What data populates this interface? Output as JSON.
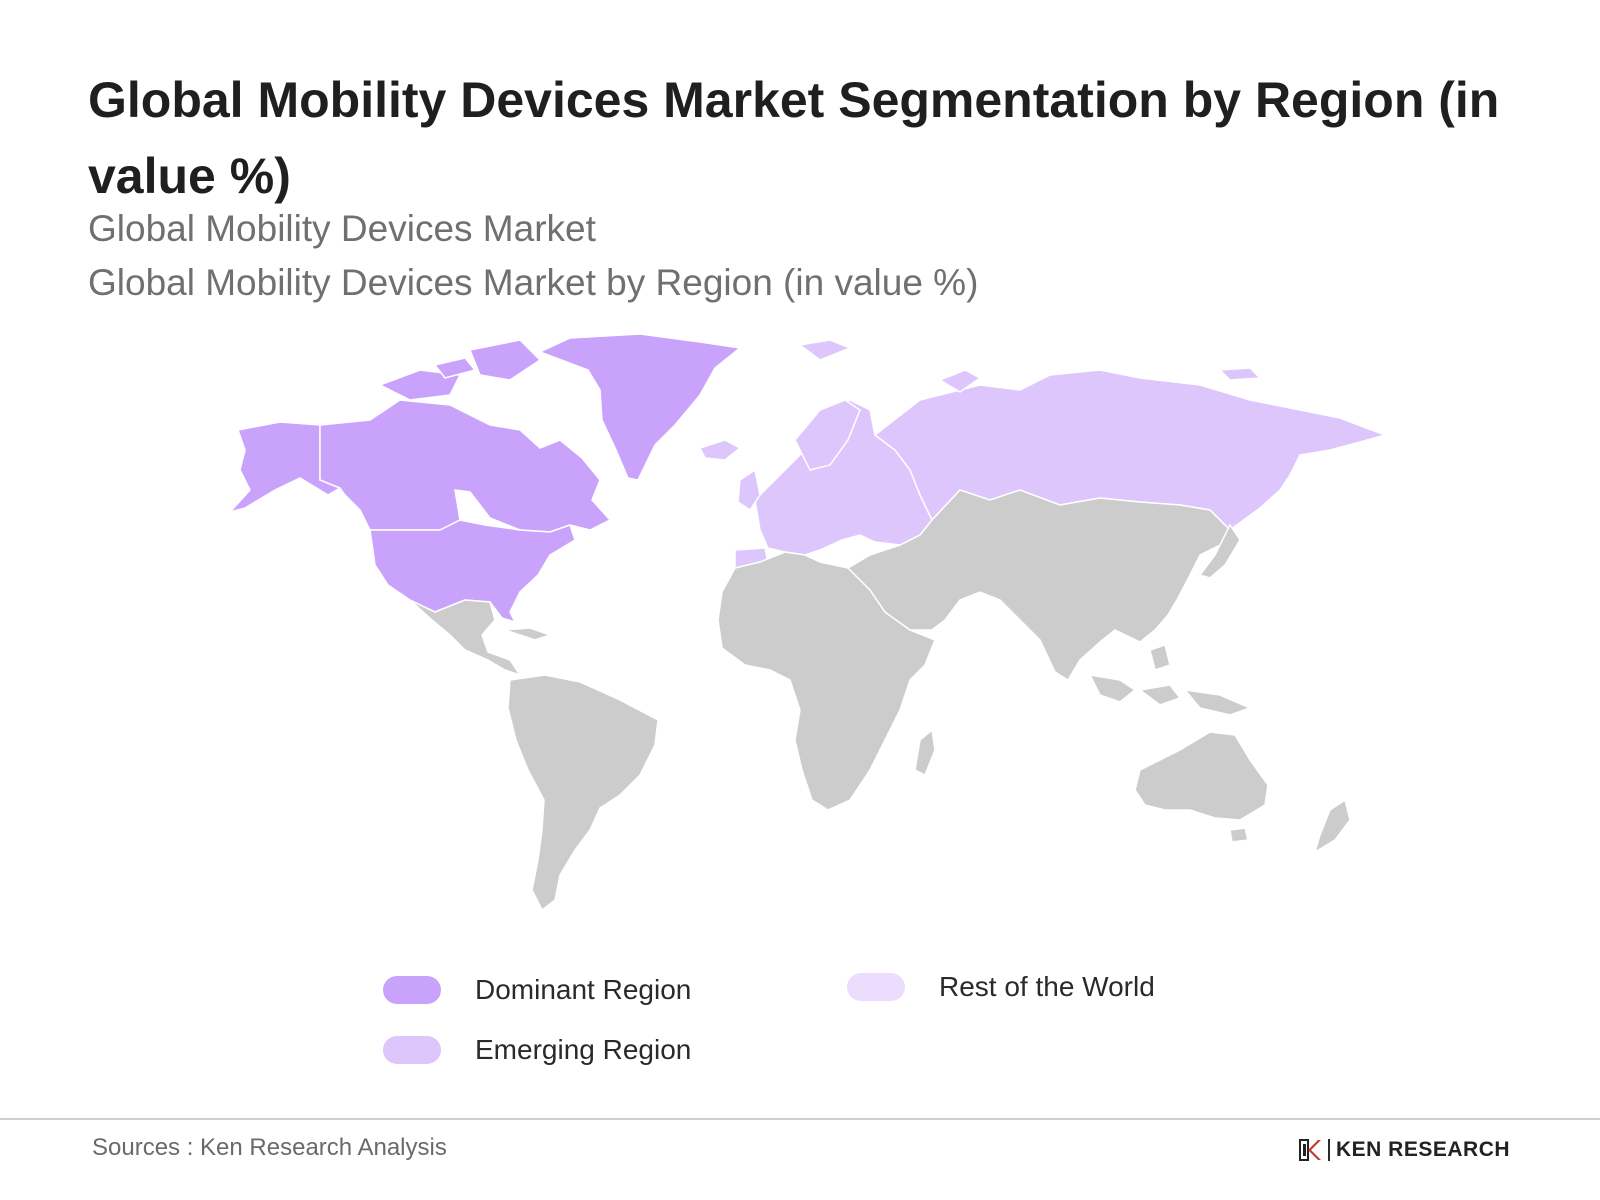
{
  "header": {
    "title": "Global Mobility Devices Market Segmentation by Region (in value %)",
    "subtitle_1": "Global Mobility Devices Market",
    "subtitle_2": "Global Mobility Devices Market by Region (in value %)"
  },
  "map": {
    "colors": {
      "dominant": "#c9a2fb",
      "emerging": "#dcc6fc",
      "rest": "#ecdcfd",
      "other": "#cccccc"
    },
    "regions": [
      {
        "name": "North America",
        "category": "dominant"
      },
      {
        "name": "Greenland",
        "category": "dominant"
      },
      {
        "name": "Europe",
        "category": "emerging"
      },
      {
        "name": "Russia",
        "category": "emerging"
      },
      {
        "name": "Latin America",
        "category": "other"
      },
      {
        "name": "Africa",
        "category": "other"
      },
      {
        "name": "Asia",
        "category": "other"
      },
      {
        "name": "Oceania",
        "category": "other"
      }
    ]
  },
  "legend": {
    "dominant": "Dominant Region",
    "emerging": "Emerging Region",
    "rest": "Rest of the World"
  },
  "footer": {
    "source": "Sources : Ken Research Analysis",
    "brand": "KEN RESEARCH"
  }
}
